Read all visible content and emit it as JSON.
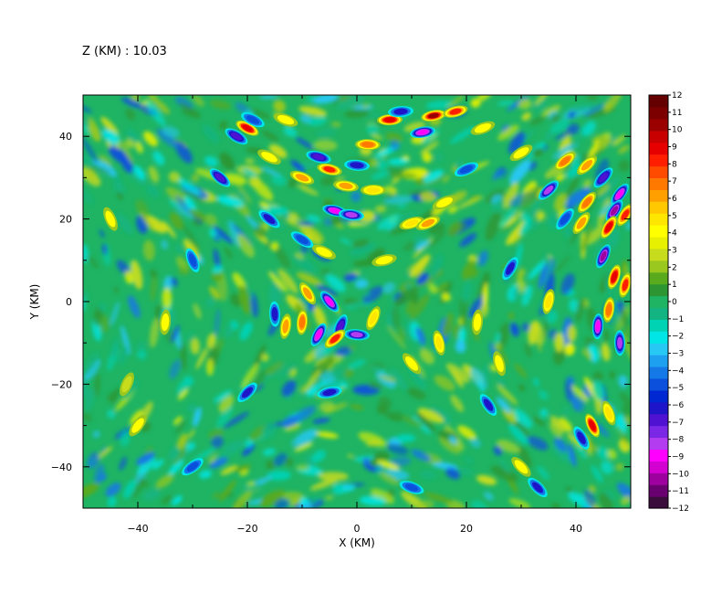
{
  "chart_data": {
    "type": "heatmap",
    "title": "Z (KM) : 10.03",
    "xlabel": "X (KM)",
    "ylabel": "Y (KM)",
    "xlim": [
      -50,
      50
    ],
    "ylim": [
      -50,
      50
    ],
    "x_ticks": [
      -40,
      -20,
      0,
      20,
      40
    ],
    "y_ticks": [
      -40,
      -20,
      0,
      20,
      40
    ],
    "x_tick_labels": [
      "−40",
      "−20",
      "0",
      "20",
      "40"
    ],
    "y_tick_labels": [
      "−40",
      "−20",
      "0",
      "20",
      "40"
    ],
    "colorbar": {
      "min": -12,
      "max": 12,
      "labels": [
        "12",
        "11",
        "10",
        "9",
        "8",
        "7",
        "6",
        "5",
        "4",
        "3",
        "2",
        "1",
        "0",
        "−1",
        "−2",
        "−3",
        "−4",
        "−5",
        "−6",
        "−7",
        "−8",
        "−9",
        "−10",
        "−11",
        "−12"
      ],
      "colors": [
        "#3b0d3d",
        "#6a0070",
        "#9e00a0",
        "#d200d0",
        "#ff00ff",
        "#b43cf0",
        "#7a28e6",
        "#5012d2",
        "#1e14c8",
        "#0028d2",
        "#0a50dc",
        "#1478e6",
        "#1ea0f0",
        "#28c8f5",
        "#00e6e6",
        "#00d2b4",
        "#14b482",
        "#1eb464",
        "#2d9632",
        "#5aaa1e",
        "#9bc81e",
        "#c8dc1e",
        "#e6f000",
        "#ffff00",
        "#ffe600",
        "#ffc800",
        "#ffa000",
        "#ff7800",
        "#ff4b00",
        "#ff1e00",
        "#e60000",
        "#c80000",
        "#9b0000",
        "#7d0000",
        "#640000"
      ]
    },
    "features": [
      {
        "x": -20,
        "y": 42,
        "v": 9
      },
      {
        "x": -22,
        "y": 40,
        "v": -7
      },
      {
        "x": -19,
        "y": 44,
        "v": -5
      },
      {
        "x": -5,
        "y": 32,
        "v": 8
      },
      {
        "x": -10,
        "y": 30,
        "v": 6
      },
      {
        "x": -7,
        "y": 35,
        "v": -7
      },
      {
        "x": -2,
        "y": 28,
        "v": 6
      },
      {
        "x": 0,
        "y": 33,
        "v": -6
      },
      {
        "x": 2,
        "y": 38,
        "v": 7
      },
      {
        "x": -4,
        "y": 22,
        "v": -9
      },
      {
        "x": -1,
        "y": 21,
        "v": -8
      },
      {
        "x": 3,
        "y": 27,
        "v": 5
      },
      {
        "x": 12,
        "y": 41,
        "v": -9
      },
      {
        "x": 14,
        "y": 45,
        "v": 10
      },
      {
        "x": 18,
        "y": 46,
        "v": 8
      },
      {
        "x": 6,
        "y": 44,
        "v": 9
      },
      {
        "x": 8,
        "y": 46,
        "v": -6
      },
      {
        "x": -13,
        "y": 44,
        "v": 4
      },
      {
        "x": 10,
        "y": 19,
        "v": 5
      },
      {
        "x": 13,
        "y": 19,
        "v": 6
      },
      {
        "x": 16,
        "y": 24,
        "v": 4
      },
      {
        "x": 30,
        "y": 36,
        "v": 4
      },
      {
        "x": 38,
        "y": 34,
        "v": 7
      },
      {
        "x": 42,
        "y": 33,
        "v": 6
      },
      {
        "x": 45,
        "y": 30,
        "v": -7
      },
      {
        "x": 48,
        "y": 26,
        "v": -9
      },
      {
        "x": 47,
        "y": 22,
        "v": -10
      },
      {
        "x": 42,
        "y": 24,
        "v": 7
      },
      {
        "x": 46,
        "y": 18,
        "v": 9
      },
      {
        "x": 49,
        "y": 21,
        "v": 8
      },
      {
        "x": 45,
        "y": 11,
        "v": -10
      },
      {
        "x": 47,
        "y": 6,
        "v": 9
      },
      {
        "x": 49,
        "y": 4,
        "v": 8
      },
      {
        "x": 41,
        "y": 19,
        "v": 6
      },
      {
        "x": 35,
        "y": 27,
        "v": -8
      },
      {
        "x": 38,
        "y": 20,
        "v": -5
      },
      {
        "x": 44,
        "y": -6,
        "v": -9
      },
      {
        "x": 48,
        "y": -10,
        "v": -8
      },
      {
        "x": 46,
        "y": -2,
        "v": 7
      },
      {
        "x": 43,
        "y": -30,
        "v": 9
      },
      {
        "x": 41,
        "y": -33,
        "v": -6
      },
      {
        "x": 46,
        "y": -27,
        "v": 5
      },
      {
        "x": -10,
        "y": -5,
        "v": 7
      },
      {
        "x": -13,
        "y": -6,
        "v": 6
      },
      {
        "x": -7,
        "y": -8,
        "v": -9
      },
      {
        "x": -3,
        "y": -6,
        "v": -7
      },
      {
        "x": 0,
        "y": -8,
        "v": -8
      },
      {
        "x": -4,
        "y": -9,
        "v": 8
      },
      {
        "x": 3,
        "y": -4,
        "v": 5
      },
      {
        "x": -5,
        "y": 0,
        "v": -9
      },
      {
        "x": -9,
        "y": 2,
        "v": 6
      },
      {
        "x": -15,
        "y": -3,
        "v": -6
      },
      {
        "x": -6,
        "y": 12,
        "v": 4
      },
      {
        "x": -10,
        "y": 15,
        "v": -5
      },
      {
        "x": -16,
        "y": 20,
        "v": -6
      },
      {
        "x": -25,
        "y": 30,
        "v": -7
      },
      {
        "x": -30,
        "y": 10,
        "v": -5
      },
      {
        "x": -35,
        "y": -5,
        "v": 4
      },
      {
        "x": -20,
        "y": -22,
        "v": -6
      },
      {
        "x": -5,
        "y": -22,
        "v": -6
      },
      {
        "x": 10,
        "y": -15,
        "v": 4
      },
      {
        "x": 15,
        "y": -10,
        "v": 5
      },
      {
        "x": 22,
        "y": -5,
        "v": 4
      },
      {
        "x": 24,
        "y": -25,
        "v": -6
      },
      {
        "x": 30,
        "y": -40,
        "v": 4
      },
      {
        "x": 33,
        "y": -45,
        "v": -6
      },
      {
        "x": 10,
        "y": -45,
        "v": -5
      },
      {
        "x": -30,
        "y": -40,
        "v": -5
      },
      {
        "x": -40,
        "y": -30,
        "v": 4
      },
      {
        "x": -45,
        "y": 20,
        "v": 4
      },
      {
        "x": -42,
        "y": -20,
        "v": 3
      },
      {
        "x": 5,
        "y": 10,
        "v": 4
      },
      {
        "x": -16,
        "y": 35,
        "v": 4
      },
      {
        "x": 23,
        "y": 42,
        "v": 4
      },
      {
        "x": 20,
        "y": 32,
        "v": -5
      },
      {
        "x": 28,
        "y": 8,
        "v": -6
      },
      {
        "x": 35,
        "y": 0,
        "v": 5
      },
      {
        "x": 26,
        "y": -15,
        "v": 4
      }
    ]
  }
}
